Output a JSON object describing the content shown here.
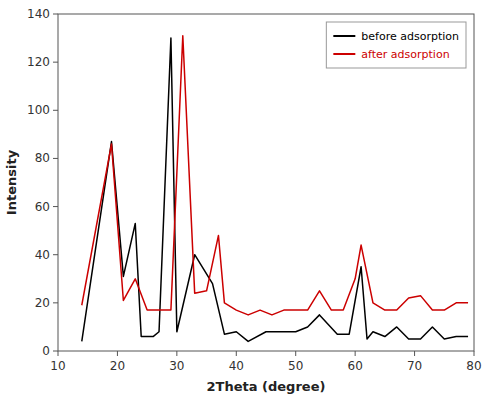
{
  "chart_data": {
    "type": "line",
    "xlabel": "2Theta (degree)",
    "ylabel": "Intensity",
    "xlim": [
      10,
      80
    ],
    "ylim": [
      0,
      140
    ],
    "xticks": [
      10,
      20,
      30,
      40,
      50,
      60,
      70,
      80
    ],
    "yticks": [
      0,
      20,
      40,
      60,
      80,
      100,
      120,
      140
    ],
    "legend": "upper-right",
    "series": [
      {
        "name": "before adsorption",
        "color": "#000000",
        "x": [
          14,
          19,
          21,
          23,
          24,
          26,
          27,
          29,
          30,
          33,
          36,
          38,
          40,
          42,
          45,
          48,
          50,
          52,
          54,
          57,
          59,
          61,
          62,
          63,
          65,
          67,
          69,
          71,
          73,
          75,
          77,
          79
        ],
        "values": [
          4,
          87,
          31,
          53,
          6,
          6,
          8,
          130,
          8,
          40,
          28,
          7,
          8,
          4,
          8,
          8,
          8,
          10,
          15,
          7,
          7,
          35,
          5,
          8,
          6,
          10,
          5,
          5,
          10,
          5,
          6,
          6
        ]
      },
      {
        "name": "after adsorption",
        "color": "#cc0000",
        "x": [
          14,
          19,
          21,
          23,
          25,
          27,
          29,
          31,
          33,
          35,
          37,
          38,
          40,
          42,
          44,
          46,
          48,
          50,
          52,
          54,
          56,
          58,
          60,
          61,
          63,
          65,
          67,
          69,
          71,
          73,
          75,
          77,
          79
        ],
        "values": [
          19,
          86,
          21,
          30,
          17,
          17,
          17,
          131,
          24,
          25,
          48,
          20,
          17,
          15,
          17,
          15,
          17,
          17,
          17,
          25,
          17,
          17,
          30,
          44,
          20,
          17,
          17,
          22,
          23,
          17,
          17,
          20,
          20
        ]
      }
    ]
  }
}
